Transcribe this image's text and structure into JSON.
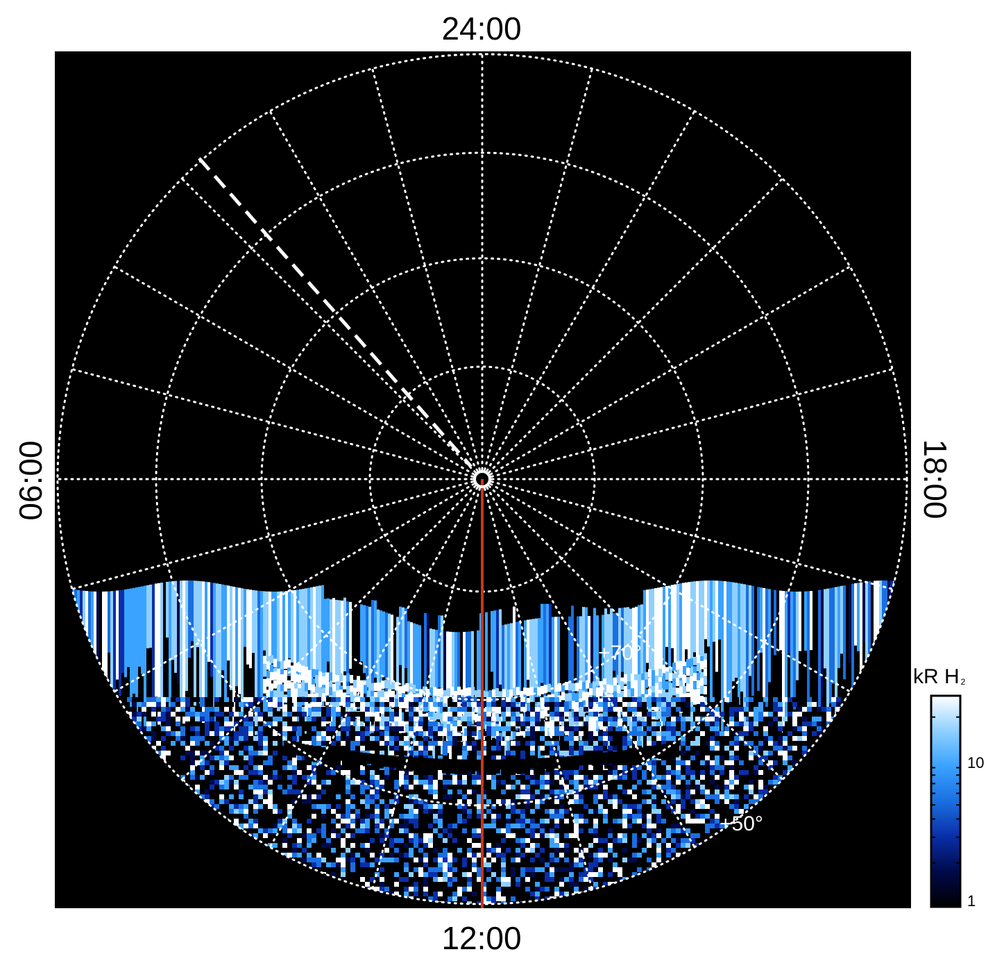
{
  "local_time_labels": {
    "top": "24:00",
    "bottom": "12:00",
    "left": "06:00",
    "right": "18:00"
  },
  "latitude_labels": {
    "inner": "+70°",
    "outer": "+50°"
  },
  "colorbar": {
    "title": "kR H",
    "title_subscript": "2",
    "ticks": [
      "1",
      "10"
    ],
    "scale": "log",
    "colors": [
      "#000000",
      "#000a4a",
      "#0a2ea8",
      "#1a6fe0",
      "#3aa2ff",
      "#8fd0ff",
      "#ffffff"
    ]
  },
  "plot": {
    "background": "#000000",
    "grid_color": "#ffffff",
    "meridian_line_color": "#c8361a",
    "dashed_line_color": "#ffffff"
  }
}
